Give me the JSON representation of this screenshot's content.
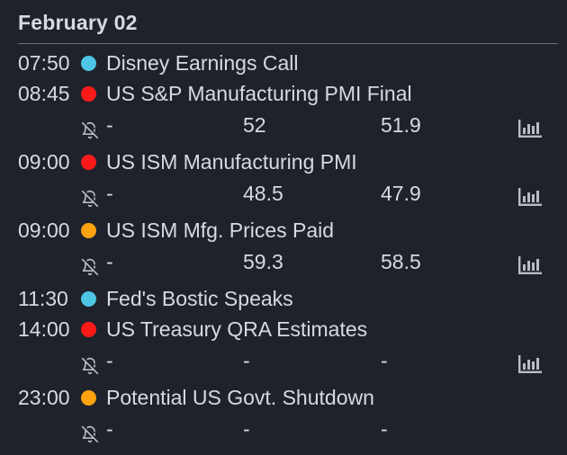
{
  "date_header": "February 02",
  "colors": {
    "high_impact": "#ff1a1a",
    "medium_impact": "#ffa20f",
    "low_impact": "#4ec5e4",
    "text": "#d7dae0",
    "icon": "#b9bcc4"
  },
  "icons": {
    "alert": "bell-off-icon",
    "chart": "bar-chart-icon"
  },
  "events": [
    {
      "time": "07:50",
      "impact": "low",
      "title": "Disney Earnings Call",
      "has_data": false
    },
    {
      "time": "08:45",
      "impact": "high",
      "title": "US S&P Manufacturing PMI Final",
      "has_data": true,
      "actual": "-",
      "forecast": "52",
      "previous": "51.9",
      "has_chart": true
    },
    {
      "time": "09:00",
      "impact": "high",
      "title": "US ISM Manufacturing PMI",
      "has_data": true,
      "actual": "-",
      "forecast": "48.5",
      "previous": "47.9",
      "has_chart": true
    },
    {
      "time": "09:00",
      "impact": "medium",
      "title": "US ISM Mfg. Prices Paid",
      "has_data": true,
      "actual": "-",
      "forecast": "59.3",
      "previous": "58.5",
      "has_chart": true
    },
    {
      "time": "11:30",
      "impact": "low",
      "title": "Fed's Bostic Speaks",
      "has_data": false
    },
    {
      "time": "14:00",
      "impact": "high",
      "title": "US Treasury QRA Estimates",
      "has_data": true,
      "actual": "-",
      "forecast": "-",
      "previous": "-",
      "has_chart": true
    },
    {
      "time": "23:00",
      "impact": "medium",
      "title": "Potential US Govt. Shutdown",
      "has_data": true,
      "actual": "-",
      "forecast": "-",
      "previous": "-",
      "has_chart": false
    }
  ]
}
